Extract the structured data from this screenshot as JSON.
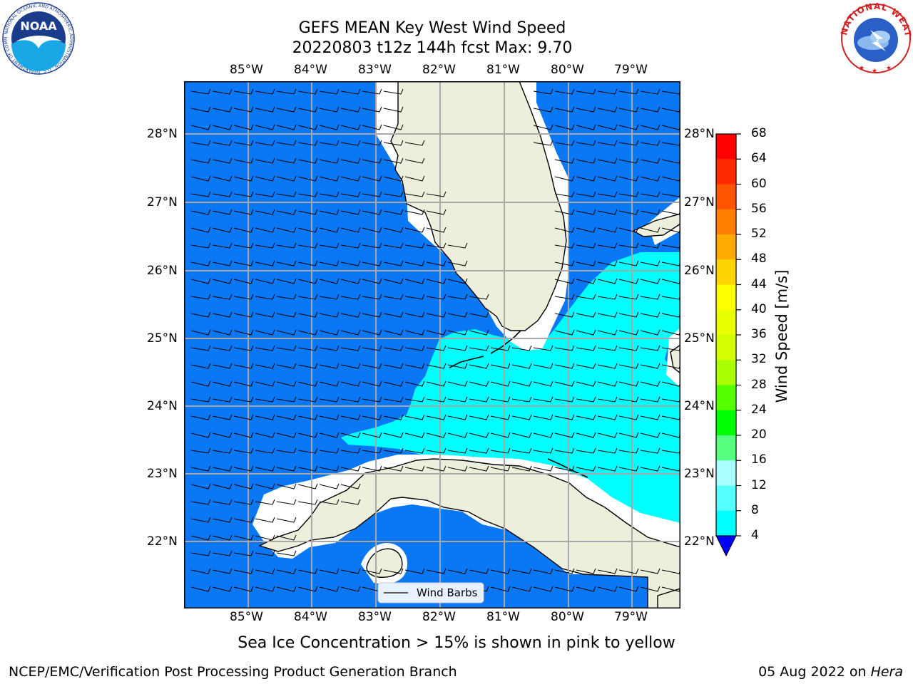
{
  "title": {
    "line1": "GEFS MEAN Key West Wind Speed",
    "line2": "20220803 t12z 144h fcst   Max: 9.70"
  },
  "map": {
    "lon_labels": [
      "85°W",
      "84°W",
      "83°W",
      "82°W",
      "81°W",
      "80°W",
      "79°W"
    ],
    "lat_labels": [
      "28°N",
      "27°N",
      "26°N",
      "25°N",
      "24°N",
      "23°N",
      "22°N"
    ],
    "legend_label": "Wind Barbs",
    "ocean_color": "#0a78f5",
    "land_color": "#eeeedc",
    "cyan_color": "#00ffff"
  },
  "colorbar": {
    "label": "Wind Speed [m/s]",
    "ticks": [
      "68",
      "64",
      "60",
      "56",
      "52",
      "48",
      "44",
      "40",
      "36",
      "32",
      "28",
      "24",
      "20",
      "16",
      "12",
      "8",
      "4"
    ],
    "colors": [
      "#ff0000",
      "#ff2a00",
      "#ff5500",
      "#ff8000",
      "#ffaa00",
      "#ffd400",
      "#ffff00",
      "#eaff00",
      "#d4ff00",
      "#aaff00",
      "#55ff00",
      "#00ff00",
      "#55ff80",
      "#aaffff",
      "#55ffff",
      "#00ffff",
      "#0a78f5"
    ],
    "under_color": "#0000ff"
  },
  "note": "Sea Ice Concentration > 15% is shown in pink to yellow",
  "footer": {
    "left": "NCEP/EMC/Verification Post Processing Product Generation Branch",
    "right_prefix": "05 Aug 2022 on ",
    "right_machine": "Hera"
  },
  "logos": {
    "noaa_text": "NOAA",
    "noaa_ring": "NATIONAL OCEANIC AND ATMOSPHERIC ADMINISTRATION · U.S. DEPARTMENT OF COMMERCE",
    "nws_ring": "NATIONAL WEATHER SERVICE"
  }
}
